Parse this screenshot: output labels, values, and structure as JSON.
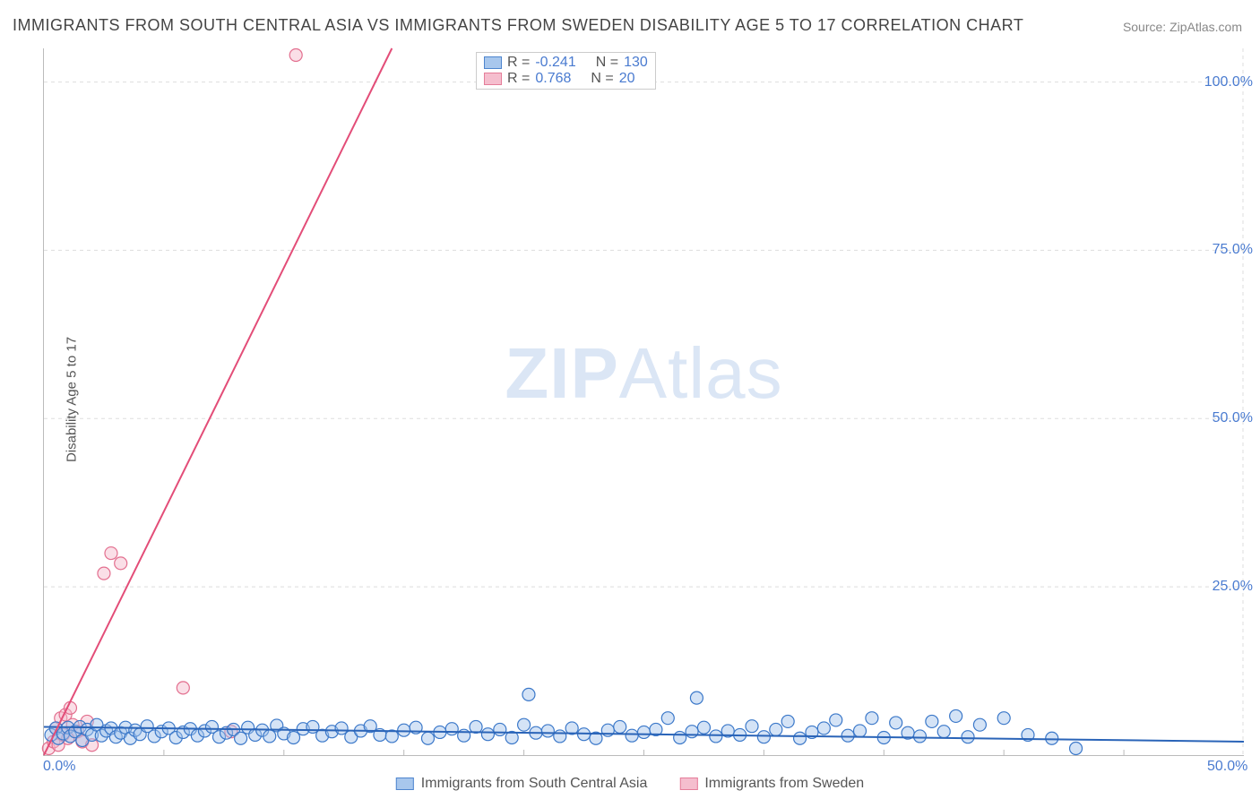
{
  "title": "IMMIGRANTS FROM SOUTH CENTRAL ASIA VS IMMIGRANTS FROM SWEDEN DISABILITY AGE 5 TO 17 CORRELATION CHART",
  "source": "Source: ZipAtlas.com",
  "ylabel": "Disability Age 5 to 17",
  "watermark_a": "ZIP",
  "watermark_b": "Atlas",
  "chart": {
    "type": "scatter",
    "xlim": [
      0,
      50
    ],
    "ylim": [
      0,
      105
    ],
    "yticks": [
      {
        "v": 25,
        "label": "25.0%"
      },
      {
        "v": 50,
        "label": "50.0%"
      },
      {
        "v": 75,
        "label": "75.0%"
      },
      {
        "v": 100,
        "label": "100.0%"
      }
    ],
    "xticks": [
      {
        "v": 0,
        "label": "0.0%"
      },
      {
        "v": 50,
        "label": "50.0%"
      }
    ],
    "background_color": "#ffffff",
    "grid_color": "#dddddd",
    "marker_radius": 7,
    "marker_stroke_width": 1.2,
    "line_width": 2,
    "series": [
      {
        "name": "Immigrants from South Central Asia",
        "fill": "#9fc2ec",
        "stroke": "#3b78c9",
        "fill_opacity": 0.45,
        "line_color": "#2a64b8",
        "R": "-0.241",
        "N": "130",
        "trend": {
          "x1": 0,
          "y1": 4.2,
          "x2": 50,
          "y2": 2.0
        },
        "points": [
          [
            0.3,
            3.0
          ],
          [
            0.5,
            4.0
          ],
          [
            0.6,
            2.5
          ],
          [
            0.8,
            3.2
          ],
          [
            1.0,
            4.1
          ],
          [
            1.1,
            2.8
          ],
          [
            1.3,
            3.5
          ],
          [
            1.5,
            4.2
          ],
          [
            1.6,
            2.2
          ],
          [
            1.8,
            3.8
          ],
          [
            2.0,
            3.0
          ],
          [
            2.2,
            4.5
          ],
          [
            2.4,
            2.9
          ],
          [
            2.6,
            3.6
          ],
          [
            2.8,
            4.0
          ],
          [
            3.0,
            2.7
          ],
          [
            3.2,
            3.3
          ],
          [
            3.4,
            4.1
          ],
          [
            3.6,
            2.5
          ],
          [
            3.8,
            3.7
          ],
          [
            4.0,
            3.1
          ],
          [
            4.3,
            4.3
          ],
          [
            4.6,
            2.8
          ],
          [
            4.9,
            3.5
          ],
          [
            5.2,
            4.0
          ],
          [
            5.5,
            2.6
          ],
          [
            5.8,
            3.4
          ],
          [
            6.1,
            3.9
          ],
          [
            6.4,
            2.9
          ],
          [
            6.7,
            3.6
          ],
          [
            7.0,
            4.2
          ],
          [
            7.3,
            2.7
          ],
          [
            7.6,
            3.3
          ],
          [
            7.9,
            3.8
          ],
          [
            8.2,
            2.5
          ],
          [
            8.5,
            4.1
          ],
          [
            8.8,
            3.0
          ],
          [
            9.1,
            3.7
          ],
          [
            9.4,
            2.8
          ],
          [
            9.7,
            4.4
          ],
          [
            10.0,
            3.2
          ],
          [
            10.4,
            2.6
          ],
          [
            10.8,
            3.9
          ],
          [
            11.2,
            4.2
          ],
          [
            11.6,
            2.9
          ],
          [
            12.0,
            3.5
          ],
          [
            12.4,
            4.0
          ],
          [
            12.8,
            2.7
          ],
          [
            13.2,
            3.6
          ],
          [
            13.6,
            4.3
          ],
          [
            14.0,
            3.0
          ],
          [
            14.5,
            2.8
          ],
          [
            15.0,
            3.7
          ],
          [
            15.5,
            4.1
          ],
          [
            16.0,
            2.5
          ],
          [
            16.5,
            3.4
          ],
          [
            17.0,
            3.9
          ],
          [
            17.5,
            2.9
          ],
          [
            18.0,
            4.2
          ],
          [
            18.5,
            3.1
          ],
          [
            19.0,
            3.8
          ],
          [
            19.5,
            2.6
          ],
          [
            20.0,
            4.5
          ],
          [
            20.2,
            9.0
          ],
          [
            20.5,
            3.3
          ],
          [
            21.0,
            3.6
          ],
          [
            21.5,
            2.8
          ],
          [
            22.0,
            4.0
          ],
          [
            22.5,
            3.1
          ],
          [
            23.0,
            2.5
          ],
          [
            23.5,
            3.7
          ],
          [
            24.0,
            4.2
          ],
          [
            24.5,
            2.9
          ],
          [
            25.0,
            3.4
          ],
          [
            25.5,
            3.8
          ],
          [
            26.0,
            5.5
          ],
          [
            26.5,
            2.6
          ],
          [
            27.0,
            3.5
          ],
          [
            27.2,
            8.5
          ],
          [
            27.5,
            4.1
          ],
          [
            28.0,
            2.8
          ],
          [
            28.5,
            3.6
          ],
          [
            29.0,
            3.0
          ],
          [
            29.5,
            4.3
          ],
          [
            30.0,
            2.7
          ],
          [
            30.5,
            3.8
          ],
          [
            31.0,
            5.0
          ],
          [
            31.5,
            2.5
          ],
          [
            32.0,
            3.4
          ],
          [
            32.5,
            4.0
          ],
          [
            33.0,
            5.2
          ],
          [
            33.5,
            2.9
          ],
          [
            34.0,
            3.6
          ],
          [
            34.5,
            5.5
          ],
          [
            35.0,
            2.6
          ],
          [
            35.5,
            4.8
          ],
          [
            36.0,
            3.3
          ],
          [
            36.5,
            2.8
          ],
          [
            37.0,
            5.0
          ],
          [
            37.5,
            3.5
          ],
          [
            38.0,
            5.8
          ],
          [
            38.5,
            2.7
          ],
          [
            39.0,
            4.5
          ],
          [
            40.0,
            5.5
          ],
          [
            41.0,
            3.0
          ],
          [
            42.0,
            2.5
          ],
          [
            43.0,
            1.0
          ]
        ]
      },
      {
        "name": "Immigrants from Sweden",
        "fill": "#f5b8c9",
        "stroke": "#e36f8f",
        "fill_opacity": 0.45,
        "line_color": "#e34d78",
        "R": " 0.768",
        "N": " 20",
        "trend": {
          "x1": 0,
          "y1": 0,
          "x2": 14.5,
          "y2": 105
        },
        "points": [
          [
            0.2,
            1.0
          ],
          [
            0.4,
            2.0
          ],
          [
            0.5,
            4.0
          ],
          [
            0.6,
            1.5
          ],
          [
            0.7,
            5.5
          ],
          [
            0.8,
            3.0
          ],
          [
            0.9,
            6.0
          ],
          [
            1.0,
            2.5
          ],
          [
            1.1,
            7.0
          ],
          [
            1.2,
            4.5
          ],
          [
            1.4,
            3.5
          ],
          [
            1.6,
            2.0
          ],
          [
            1.8,
            5.0
          ],
          [
            2.0,
            1.5
          ],
          [
            2.5,
            27.0
          ],
          [
            2.8,
            30.0
          ],
          [
            3.2,
            28.5
          ],
          [
            5.8,
            10.0
          ],
          [
            7.8,
            3.5
          ],
          [
            10.5,
            104.0
          ]
        ]
      }
    ]
  },
  "legend_top": {
    "r_label": "R =",
    "n_label": "N ="
  }
}
